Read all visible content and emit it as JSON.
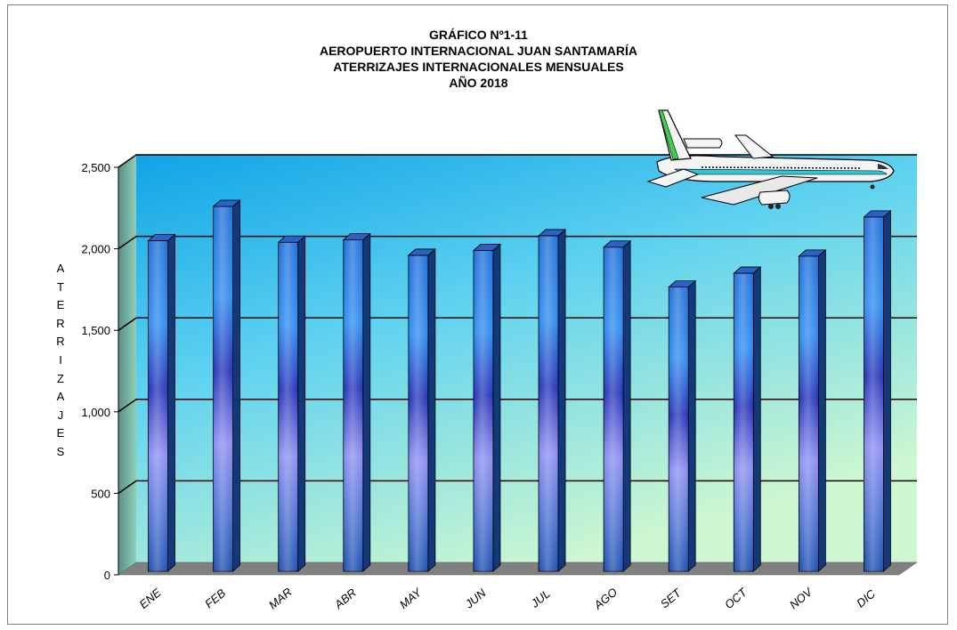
{
  "title_lines": [
    "GRÁFICO Nº1-11",
    "AEROPUERTO INTERNACIONAL JUAN SANTAMARÍA",
    "ATERRIZAJES INTERNACIONALES MENSUALES",
    "AÑO 2018"
  ],
  "ylabel_letters": [
    "A",
    "T",
    "E",
    "R",
    "R",
    "I",
    "Z",
    "A",
    "J",
    "E",
    "S"
  ],
  "chart_data": {
    "type": "bar",
    "title": "GRÁFICO Nº1-11 AEROPUERTO INTERNACIONAL JUAN SANTAMARÍA ATERRIZAJES INTERNACIONALES MENSUALES AÑO 2018",
    "xlabel": "",
    "ylabel": "ATERRIZAJES",
    "categories": [
      "ENE",
      "FEB",
      "MAR",
      "ABR",
      "MAY",
      "JUN",
      "JUL",
      "AGO",
      "SET",
      "OCT",
      "NOV",
      "DIC"
    ],
    "values": [
      2050,
      2260,
      2040,
      2055,
      1960,
      1990,
      2080,
      2010,
      1765,
      1850,
      1955,
      2195
    ],
    "ylim": [
      0,
      2500
    ],
    "yticks": [
      0,
      500,
      1000,
      1500,
      2000,
      2500
    ],
    "ytick_labels": [
      "0",
      "500",
      "1,000",
      "1,500",
      "2,000",
      "2,500"
    ],
    "grid": true,
    "legend": "none",
    "colors": {
      "bar_light": "#9a9cf0",
      "bar_mid": "#2a4fd6",
      "bar_dark": "#163fa8",
      "bar_side": "#0e3070",
      "wall_top": "#12a9e8",
      "wall_bottom": "#c8f5d4",
      "floor": "#808080"
    }
  },
  "decoration": {
    "icon": "airplane-icon"
  }
}
